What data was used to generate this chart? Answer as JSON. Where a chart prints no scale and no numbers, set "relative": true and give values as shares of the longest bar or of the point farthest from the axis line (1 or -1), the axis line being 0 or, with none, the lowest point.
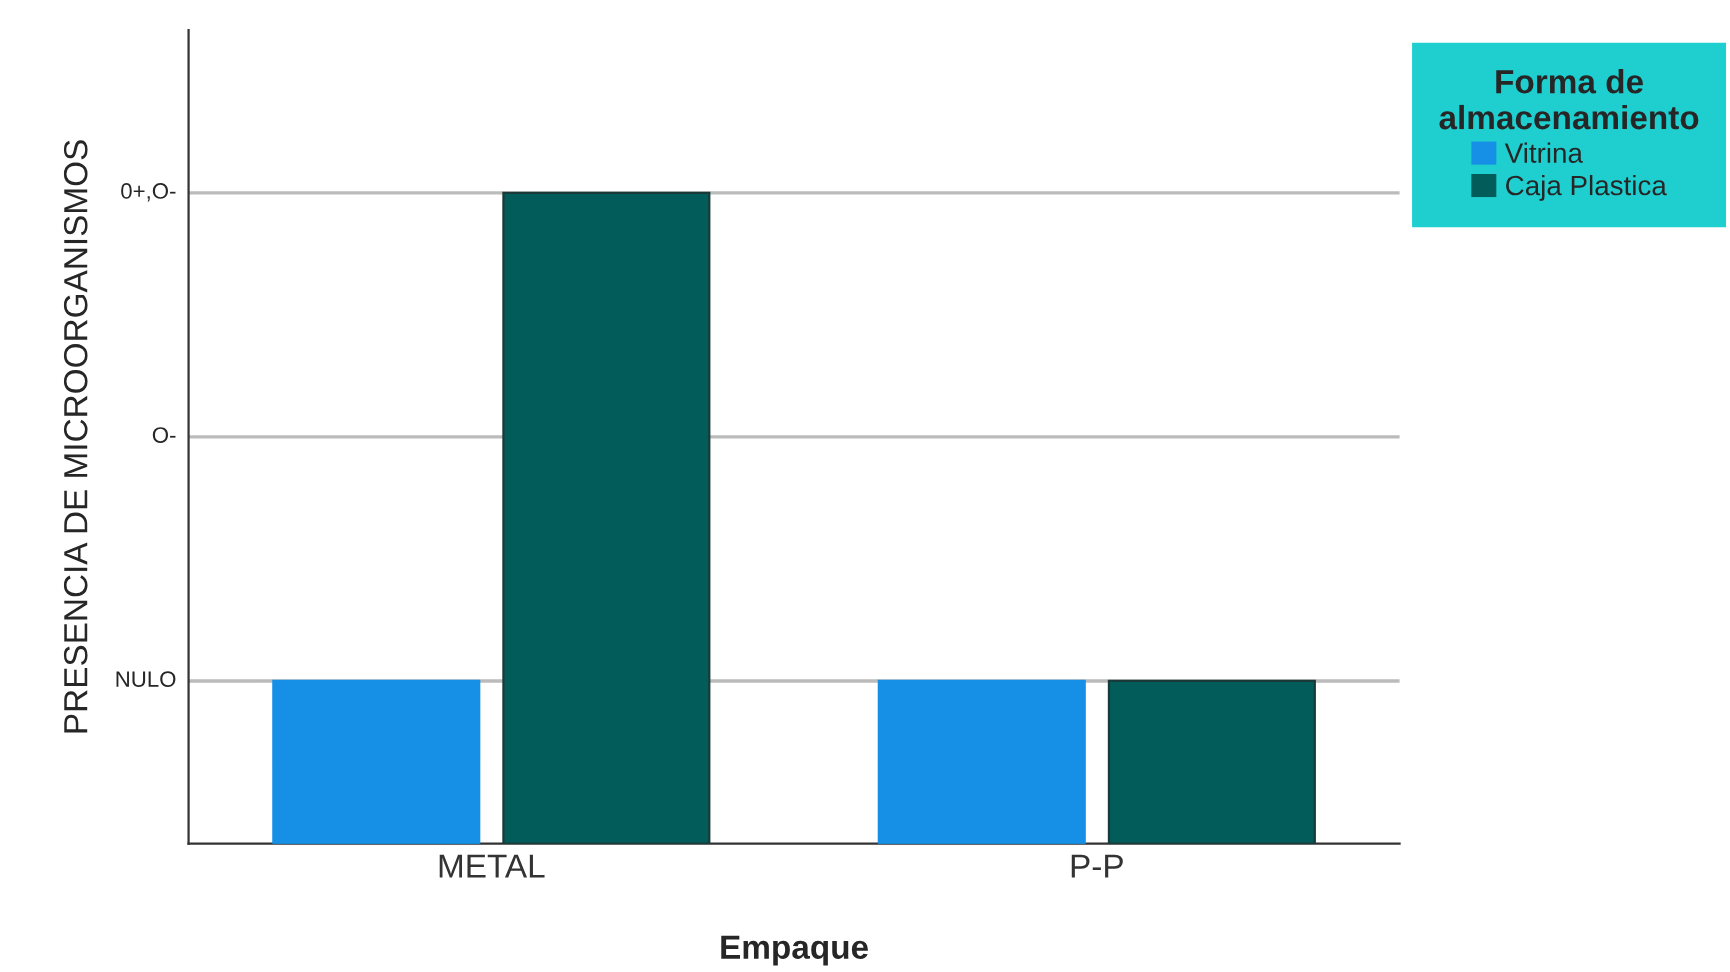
{
  "chart_data": {
    "type": "bar",
    "xlabel": "Empaque",
    "ylabel": "PRESENCIA DE MICROORGANISMOS",
    "legend_title": "Forma de\nalmacenamiento",
    "categories": [
      "METAL",
      "P-P"
    ],
    "relative": true,
    "series": [
      {
        "name": "Vitrina",
        "color": "#1590e6",
        "values": [
          0.25,
          0.25
        ]
      },
      {
        "name": "Caja Plastica",
        "color": "#025c5a",
        "values": [
          1,
          0.25
        ]
      }
    ],
    "ref_lines": [
      {
        "axis": "y",
        "value": 0.25,
        "label": "NULO",
        "color": "#bbbbbb"
      },
      {
        "axis": "y",
        "value": 0.625,
        "label": "O-",
        "color": "#bbbbbb"
      },
      {
        "axis": "y",
        "value": 1,
        "label": "0+,O-",
        "color": "#bbbbbb"
      }
    ],
    "legend": "top right"
  }
}
